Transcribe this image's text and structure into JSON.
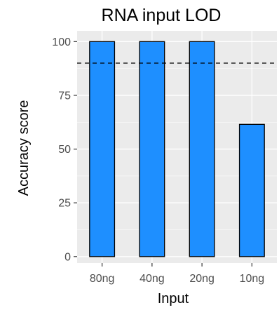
{
  "chart_data": {
    "type": "bar",
    "title": "RNA input LOD",
    "xlabel": "Input",
    "ylabel": "Accuracy score",
    "categories": [
      "80ng",
      "40ng",
      "20ng",
      "10ng"
    ],
    "values": [
      100,
      100,
      100,
      61.5
    ],
    "ylim": [
      -3,
      105
    ],
    "yticks": [
      0,
      25,
      50,
      75,
      100
    ],
    "reference_line": {
      "value": 90,
      "style": "dashed"
    },
    "bar_color": "#1e8fff",
    "bar_edge_color": "#000000",
    "panel_background": "#ebebeb",
    "grid": true,
    "legend": "none"
  }
}
